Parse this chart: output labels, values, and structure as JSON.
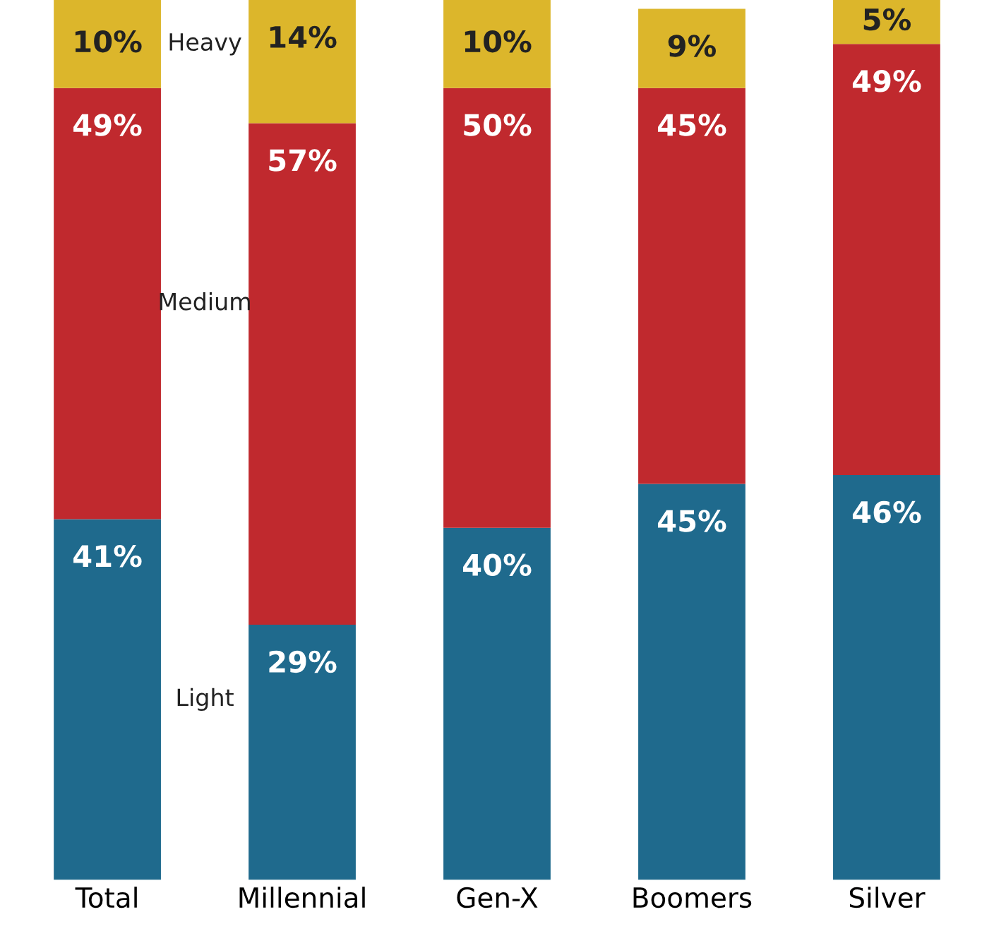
{
  "chart_data": {
    "type": "bar",
    "stacked": true,
    "legend": false,
    "categories": [
      "Total",
      "Millennial",
      "Gen-X",
      "Boomers",
      "Silver"
    ],
    "series": [
      {
        "name": "Light",
        "color": "#1f6a8d",
        "values": [
          41,
          29,
          40,
          45,
          46
        ],
        "value_labels": [
          "41%",
          "29%",
          "40%",
          "45%",
          "46%"
        ]
      },
      {
        "name": "Medium",
        "color": "#c0292e",
        "values": [
          49,
          57,
          50,
          45,
          49
        ],
        "value_labels": [
          "49%",
          "57%",
          "50%",
          "45%",
          "49%"
        ]
      },
      {
        "name": "Heavy",
        "color": "#dcb62b",
        "values": [
          10,
          14,
          10,
          9,
          5
        ],
        "value_labels": [
          "10%",
          "14%",
          "10%",
          "9%",
          "5%"
        ]
      }
    ]
  }
}
